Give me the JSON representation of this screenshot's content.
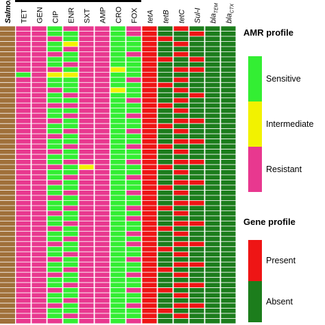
{
  "chart_data": {
    "type": "heatmap",
    "group_label": "Salmonella",
    "group_color": "#a0703a",
    "columns": [
      {
        "label": "TET",
        "kind": "amr"
      },
      {
        "label": "GEN",
        "kind": "amr"
      },
      {
        "label": "CIP",
        "kind": "amr"
      },
      {
        "label": "ENR",
        "kind": "amr"
      },
      {
        "label": "SXT",
        "kind": "amr"
      },
      {
        "label": "AMP",
        "kind": "amr"
      },
      {
        "label": "CRO",
        "kind": "amr"
      },
      {
        "label": "FOX",
        "kind": "amr"
      },
      {
        "label": "tetA",
        "kind": "gene"
      },
      {
        "label": "tetB",
        "kind": "gene"
      },
      {
        "label": "tetC",
        "kind": "gene"
      },
      {
        "label": "Sul-I",
        "kind": "gene"
      },
      {
        "label": "bla",
        "sub": "TEM",
        "kind": "gene"
      },
      {
        "label": "bla",
        "sub": "CTX",
        "kind": "gene"
      }
    ],
    "legends": [
      {
        "title": "AMR profile",
        "kind": "amr",
        "items": [
          {
            "label": "Sensitive",
            "value": 0,
            "color": "#33ee33"
          },
          {
            "label": "Intermediate",
            "value": 1,
            "color": "#f2f200"
          },
          {
            "label": "Resistant",
            "value": 2,
            "color": "#e8388f"
          }
        ]
      },
      {
        "title": "Gene profile",
        "kind": "gene",
        "items": [
          {
            "label": "Present",
            "value": 1,
            "color": "#ee1515"
          },
          {
            "label": "Absent",
            "value": 0,
            "color": "#1c7d1c"
          }
        ]
      }
    ],
    "rows": [
      [
        2,
        2,
        0,
        2,
        2,
        2,
        0,
        2,
        1,
        0,
        1,
        0,
        0,
        0
      ],
      [
        2,
        2,
        0,
        0,
        2,
        2,
        0,
        2,
        1,
        0,
        0,
        1,
        0,
        0
      ],
      [
        2,
        2,
        2,
        0,
        2,
        2,
        0,
        0,
        1,
        1,
        0,
        0,
        0,
        0
      ],
      [
        2,
        2,
        0,
        1,
        2,
        2,
        0,
        0,
        1,
        0,
        1,
        0,
        0,
        0
      ],
      [
        2,
        2,
        0,
        2,
        2,
        2,
        0,
        0,
        1,
        0,
        0,
        0,
        0,
        0
      ],
      [
        2,
        2,
        2,
        0,
        2,
        2,
        0,
        2,
        1,
        0,
        1,
        0,
        0,
        0
      ],
      [
        2,
        2,
        0,
        0,
        2,
        2,
        0,
        0,
        1,
        1,
        0,
        1,
        0,
        0
      ],
      [
        2,
        2,
        0,
        2,
        2,
        2,
        0,
        0,
        1,
        0,
        0,
        0,
        0,
        0
      ],
      [
        2,
        2,
        2,
        0,
        2,
        2,
        1,
        0,
        1,
        0,
        1,
        1,
        0,
        0
      ],
      [
        0,
        2,
        1,
        1,
        2,
        2,
        0,
        0,
        1,
        0,
        0,
        0,
        0,
        0
      ],
      [
        2,
        2,
        0,
        0,
        2,
        2,
        0,
        2,
        1,
        0,
        1,
        0,
        0,
        0
      ],
      [
        2,
        2,
        0,
        0,
        2,
        2,
        0,
        0,
        1,
        1,
        0,
        0,
        0,
        0
      ],
      [
        2,
        2,
        2,
        0,
        2,
        2,
        1,
        0,
        1,
        0,
        1,
        0,
        0,
        0
      ],
      [
        2,
        2,
        0,
        2,
        2,
        2,
        0,
        0,
        1,
        0,
        0,
        1,
        0,
        0
      ],
      [
        2,
        2,
        0,
        0,
        2,
        2,
        0,
        2,
        1,
        0,
        1,
        0,
        0,
        0
      ],
      [
        2,
        2,
        2,
        2,
        2,
        2,
        0,
        0,
        1,
        1,
        0,
        0,
        0,
        0
      ],
      [
        2,
        2,
        0,
        0,
        2,
        2,
        0,
        0,
        1,
        0,
        1,
        0,
        0,
        0
      ],
      [
        2,
        2,
        0,
        2,
        2,
        2,
        0,
        2,
        1,
        0,
        0,
        0,
        0,
        0
      ],
      [
        2,
        2,
        2,
        0,
        2,
        2,
        0,
        0,
        1,
        0,
        1,
        1,
        0,
        0
      ],
      [
        2,
        2,
        0,
        0,
        2,
        2,
        0,
        0,
        1,
        1,
        0,
        0,
        0,
        0
      ],
      [
        2,
        2,
        0,
        2,
        2,
        2,
        0,
        2,
        1,
        0,
        1,
        0,
        0,
        0
      ],
      [
        2,
        2,
        2,
        0,
        2,
        2,
        0,
        0,
        1,
        0,
        0,
        0,
        0,
        0
      ],
      [
        2,
        2,
        0,
        0,
        2,
        2,
        0,
        0,
        1,
        0,
        1,
        1,
        0,
        0
      ],
      [
        2,
        2,
        0,
        2,
        2,
        2,
        0,
        2,
        1,
        1,
        0,
        0,
        0,
        0
      ],
      [
        2,
        2,
        2,
        0,
        2,
        2,
        0,
        0,
        1,
        0,
        1,
        0,
        0,
        0
      ],
      [
        2,
        2,
        0,
        0,
        2,
        2,
        0,
        0,
        1,
        0,
        0,
        0,
        0,
        0
      ],
      [
        2,
        2,
        0,
        2,
        2,
        2,
        0,
        2,
        1,
        0,
        1,
        1,
        0,
        0
      ],
      [
        2,
        2,
        2,
        0,
        1,
        2,
        0,
        0,
        1,
        1,
        0,
        0,
        0,
        0
      ],
      [
        2,
        2,
        0,
        0,
        2,
        2,
        0,
        0,
        1,
        0,
        1,
        0,
        0,
        0
      ],
      [
        2,
        2,
        0,
        2,
        2,
        2,
        0,
        2,
        1,
        0,
        0,
        0,
        0,
        0
      ],
      [
        2,
        2,
        2,
        0,
        2,
        2,
        0,
        0,
        1,
        0,
        1,
        1,
        0,
        0
      ],
      [
        2,
        2,
        0,
        0,
        2,
        2,
        0,
        0,
        1,
        1,
        0,
        0,
        0,
        0
      ],
      [
        2,
        2,
        0,
        2,
        2,
        2,
        0,
        2,
        1,
        0,
        1,
        0,
        0,
        0
      ],
      [
        2,
        2,
        2,
        0,
        2,
        2,
        0,
        0,
        1,
        0,
        0,
        0,
        0,
        0
      ],
      [
        2,
        2,
        0,
        0,
        2,
        2,
        0,
        0,
        1,
        0,
        1,
        1,
        0,
        0
      ],
      [
        2,
        2,
        0,
        2,
        2,
        2,
        0,
        2,
        1,
        1,
        0,
        0,
        0,
        0
      ],
      [
        2,
        2,
        2,
        0,
        2,
        2,
        0,
        0,
        1,
        0,
        1,
        0,
        0,
        0
      ],
      [
        2,
        2,
        0,
        0,
        2,
        2,
        0,
        2,
        1,
        0,
        0,
        0,
        0,
        0
      ],
      [
        2,
        2,
        0,
        2,
        2,
        2,
        0,
        0,
        1,
        0,
        1,
        1,
        0,
        0
      ],
      [
        2,
        2,
        2,
        0,
        2,
        2,
        0,
        0,
        1,
        1,
        0,
        0,
        0,
        0
      ],
      [
        2,
        2,
        0,
        0,
        2,
        2,
        0,
        2,
        1,
        0,
        1,
        0,
        0,
        0
      ],
      [
        2,
        2,
        0,
        2,
        2,
        2,
        0,
        0,
        1,
        0,
        0,
        0,
        0,
        0
      ],
      [
        2,
        2,
        2,
        0,
        2,
        2,
        0,
        2,
        1,
        0,
        1,
        1,
        0,
        0
      ],
      [
        2,
        2,
        0,
        0,
        2,
        2,
        0,
        0,
        1,
        1,
        0,
        0,
        0,
        0
      ],
      [
        2,
        2,
        0,
        2,
        2,
        2,
        0,
        0,
        1,
        0,
        1,
        0,
        0,
        0
      ],
      [
        2,
        2,
        2,
        0,
        2,
        2,
        0,
        2,
        1,
        0,
        0,
        0,
        0,
        0
      ],
      [
        2,
        2,
        0,
        0,
        2,
        2,
        0,
        0,
        1,
        0,
        1,
        1,
        0,
        0
      ],
      [
        2,
        2,
        0,
        2,
        2,
        2,
        0,
        0,
        1,
        1,
        0,
        0,
        0,
        0
      ],
      [
        2,
        2,
        2,
        0,
        2,
        2,
        0,
        2,
        1,
        0,
        1,
        0,
        0,
        0
      ],
      [
        2,
        2,
        0,
        0,
        2,
        2,
        0,
        0,
        1,
        0,
        0,
        0,
        0,
        0
      ],
      [
        2,
        2,
        0,
        2,
        2,
        2,
        0,
        0,
        1,
        0,
        1,
        1,
        0,
        0
      ],
      [
        2,
        2,
        2,
        0,
        2,
        2,
        0,
        2,
        1,
        1,
        0,
        0,
        0,
        0
      ],
      [
        2,
        2,
        0,
        0,
        2,
        2,
        0,
        0,
        1,
        0,
        1,
        0,
        0,
        0
      ],
      [
        2,
        2,
        0,
        2,
        2,
        2,
        0,
        0,
        1,
        0,
        0,
        0,
        0,
        0
      ],
      [
        2,
        2,
        2,
        0,
        2,
        2,
        0,
        2,
        1,
        0,
        1,
        1,
        0,
        0
      ],
      [
        2,
        2,
        0,
        0,
        2,
        2,
        0,
        0,
        1,
        1,
        0,
        0,
        0,
        0
      ],
      [
        2,
        2,
        0,
        2,
        2,
        2,
        0,
        0,
        1,
        0,
        1,
        0,
        0,
        0
      ],
      [
        2,
        2,
        2,
        0,
        2,
        2,
        0,
        2,
        1,
        0,
        0,
        0,
        0,
        0
      ]
    ]
  }
}
